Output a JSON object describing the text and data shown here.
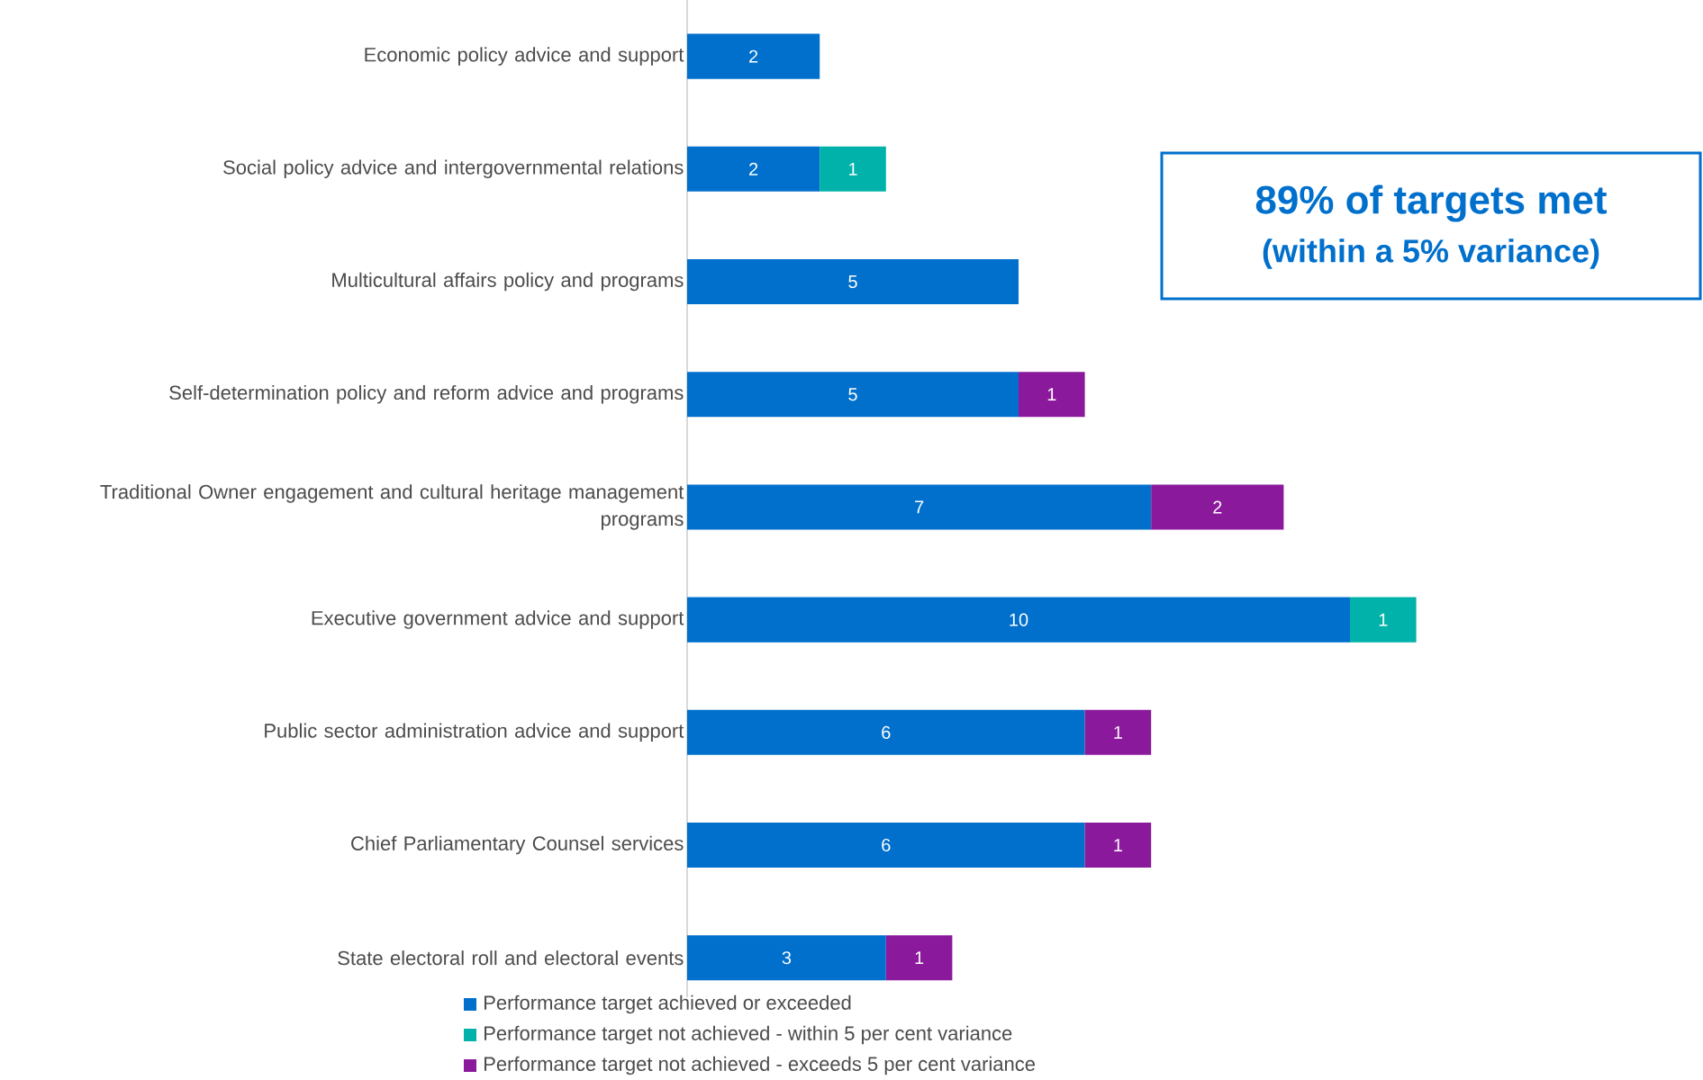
{
  "chart_data": {
    "type": "bar",
    "orientation": "horizontal",
    "stacked": true,
    "data_labels": true,
    "tick_labels": "y",
    "legend": "bottom",
    "categories": [
      "Economic policy advice and support",
      "Social policy advice and intergovernmental relations",
      "Multicultural affairs policy and programs",
      "Self-determination policy and reform advice and programs",
      "Traditional Owner engagement and cultural heritage management programs",
      "Executive government advice and support",
      "Public sector administration advice and support",
      "Chief Parliamentary Counsel services",
      "State electoral roll and electoral events"
    ],
    "series": [
      {
        "name": "Performance target achieved or exceeded",
        "color": "#0070cc",
        "values": [
          2,
          2,
          5,
          5,
          7,
          10,
          6,
          6,
          3
        ]
      },
      {
        "name": "Performance target not achieved - within 5 per cent variance",
        "color": "#00b2a9",
        "values": [
          null,
          1,
          null,
          null,
          null,
          1,
          null,
          null,
          null
        ]
      },
      {
        "name": "Performance target not achieved - exceeds 5 per cent variance",
        "color": "#8a1a9b",
        "values": [
          null,
          null,
          null,
          1,
          2,
          null,
          1,
          1,
          1
        ]
      }
    ],
    "annotations": [
      "**89% of targets met**",
      "**(within a 5% variance)**"
    ]
  }
}
